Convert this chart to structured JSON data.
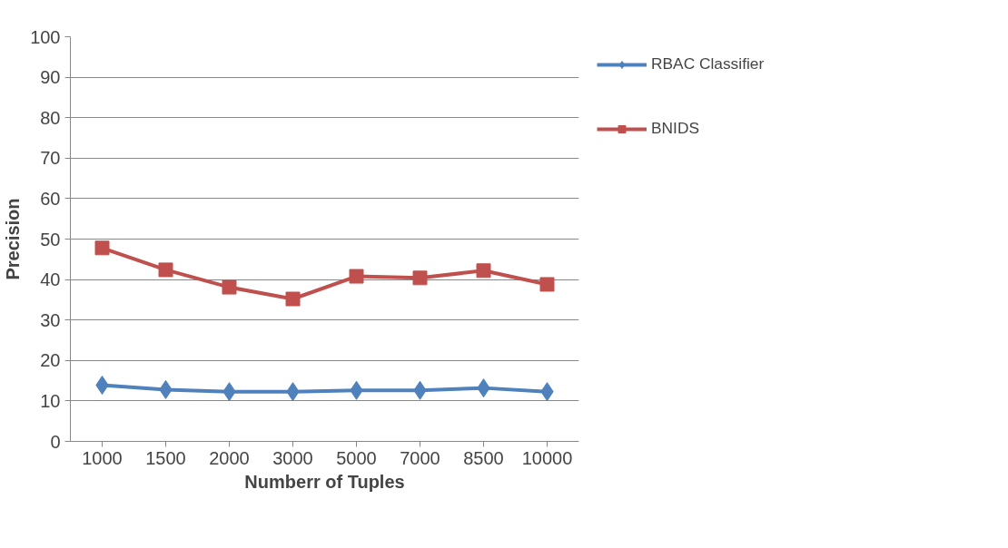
{
  "chart_data": {
    "type": "line",
    "xlabel": "Numberr of Tuples",
    "ylabel": "Precision",
    "categories": [
      "1000",
      "1500",
      "2000",
      "3000",
      "5000",
      "7000",
      "8500",
      "10000"
    ],
    "series": [
      {
        "name": "RBAC Classifier",
        "color": "#4f81bd",
        "marker": "diamond",
        "values": [
          13.9,
          12.8,
          12.3,
          12.3,
          12.6,
          12.6,
          13.2,
          12.3
        ]
      },
      {
        "name": "BNIDS",
        "color": "#c0504d",
        "marker": "square",
        "values": [
          47.8,
          42.4,
          38.1,
          35.2,
          40.8,
          40.4,
          42.2,
          38.8
        ]
      }
    ],
    "ylim": [
      0,
      100
    ],
    "yticks": [
      0,
      10,
      20,
      30,
      40,
      50,
      60,
      70,
      80,
      90,
      100
    ],
    "grid": "y",
    "legend": "right",
    "line_style": "solid"
  }
}
